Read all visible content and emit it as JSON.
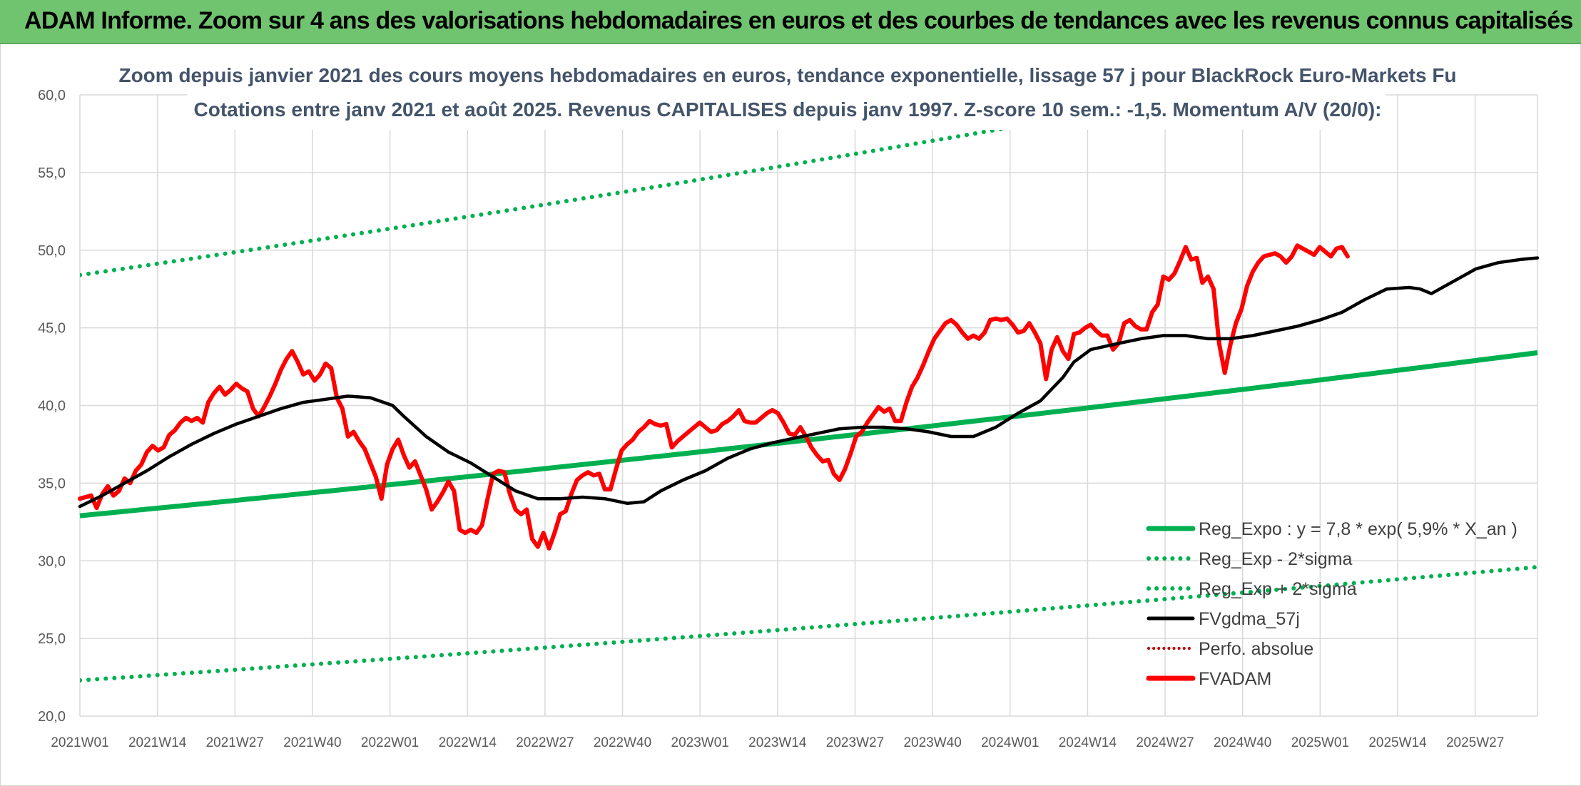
{
  "banner": "ADAM Informe. Zoom sur 4 ans des valorisations hebdomadaires en euros et des courbes de tendances avec les revenus connus capitalisés",
  "colors": {
    "banner": "#70c46f",
    "trend": "#00b050",
    "fvadam": "#ff0000",
    "fvgdma": "#000000",
    "perfo": "#c00000",
    "title": "#44546a"
  },
  "chart_data": {
    "type": "line",
    "title_line1": "Zoom depuis janvier 2021 des cours moyens hebdomadaires en euros, tendance exponentielle, lissage 57 j pour BlackRock Euro-Markets Fu",
    "title_line2": "Cotations entre janv 2021 et août 2025. Revenus CAPITALISES depuis janv 1997. Z-score 10 sem.: -1,5. Momentum A/V (20/0):",
    "ylim": [
      20,
      60
    ],
    "y_ticks": [
      "20,0",
      "25,0",
      "30,0",
      "35,0",
      "40,0",
      "45,0",
      "50,0",
      "55,0",
      "60,0"
    ],
    "x_ticks": [
      "2021W01",
      "2021W14",
      "2021W27",
      "2021W40",
      "2022W01",
      "2022W14",
      "2022W27",
      "2022W40",
      "2023W01",
      "2023W14",
      "2023W27",
      "2023W40",
      "2024W01",
      "2024W14",
      "2024W27",
      "2024W40",
      "2025W01",
      "2025W14",
      "2025W27"
    ],
    "grid": true,
    "legend_position": "bottom-right",
    "legend": [
      {
        "label": "Reg_Expo : y = 7,8 * exp( 5,9% *  X_an )",
        "style": "solid-green"
      },
      {
        "label": "Reg_Exp - 2*sigma",
        "style": "dotted-green"
      },
      {
        "label": "Reg_Exp + 2*sigma",
        "style": "dotted-green"
      },
      {
        "label": "FVgdma_57j",
        "style": "solid-black"
      },
      {
        "label": "Perfo. absolue",
        "style": "dotted-red"
      },
      {
        "label": "FVADAM",
        "style": "solid-red"
      }
    ],
    "series": [
      {
        "name": "Reg_Expo : y = 7,8 * exp( 5,9% *  X_an )",
        "key": "reg",
        "start": 32.9,
        "end": 43.4
      },
      {
        "name": "Reg_Exp - 2*sigma",
        "key": "low",
        "start": 22.3,
        "end": 29.6
      },
      {
        "name": "Reg_Exp + 2*sigma",
        "key": "high",
        "start": 48.4,
        "end": 64.1
      },
      {
        "name": "FVgdma_57j",
        "key": "gdma",
        "points": [
          [
            0,
            33.5
          ],
          [
            4,
            34.2
          ],
          [
            8,
            35.0
          ],
          [
            12,
            35.8
          ],
          [
            16,
            36.7
          ],
          [
            20,
            37.5
          ],
          [
            24,
            38.2
          ],
          [
            28,
            38.8
          ],
          [
            32,
            39.3
          ],
          [
            36,
            39.8
          ],
          [
            40,
            40.2
          ],
          [
            44,
            40.4
          ],
          [
            48,
            40.6
          ],
          [
            52,
            40.5
          ],
          [
            56,
            40.0
          ],
          [
            58,
            39.3
          ],
          [
            62,
            38.0
          ],
          [
            66,
            37.0
          ],
          [
            70,
            36.3
          ],
          [
            74,
            35.4
          ],
          [
            78,
            34.5
          ],
          [
            82,
            34.0
          ],
          [
            86,
            34.0
          ],
          [
            90,
            34.1
          ],
          [
            94,
            34.0
          ],
          [
            98,
            33.7
          ],
          [
            101,
            33.8
          ],
          [
            104,
            34.5
          ],
          [
            108,
            35.2
          ],
          [
            112,
            35.8
          ],
          [
            116,
            36.6
          ],
          [
            120,
            37.2
          ],
          [
            124,
            37.6
          ],
          [
            128,
            37.9
          ],
          [
            132,
            38.2
          ],
          [
            136,
            38.5
          ],
          [
            140,
            38.6
          ],
          [
            144,
            38.6
          ],
          [
            148,
            38.5
          ],
          [
            152,
            38.3
          ],
          [
            156,
            38.0
          ],
          [
            160,
            38.0
          ],
          [
            164,
            38.6
          ],
          [
            168,
            39.5
          ],
          [
            172,
            40.3
          ],
          [
            176,
            41.8
          ],
          [
            178,
            42.8
          ],
          [
            181,
            43.6
          ],
          [
            186,
            44.0
          ],
          [
            190,
            44.3
          ],
          [
            194,
            44.5
          ],
          [
            198,
            44.5
          ],
          [
            202,
            44.3
          ],
          [
            206,
            44.3
          ],
          [
            210,
            44.5
          ],
          [
            214,
            44.8
          ],
          [
            218,
            45.1
          ],
          [
            222,
            45.5
          ],
          [
            226,
            46.0
          ],
          [
            230,
            46.8
          ],
          [
            234,
            47.5
          ],
          [
            238,
            47.6
          ],
          [
            240,
            47.5
          ],
          [
            242,
            47.2
          ],
          [
            246,
            48.0
          ],
          [
            250,
            48.8
          ],
          [
            254,
            49.2
          ],
          [
            258,
            49.4
          ],
          [
            261,
            49.5
          ]
        ]
      },
      {
        "name": "FVADAM",
        "key": "fvadam",
        "points": [
          [
            0,
            34.0
          ],
          [
            2,
            34.2
          ],
          [
            3,
            33.4
          ],
          [
            4,
            34.3
          ],
          [
            5,
            34.8
          ],
          [
            6,
            34.2
          ],
          [
            7,
            34.5
          ],
          [
            8,
            35.3
          ],
          [
            9,
            35.0
          ],
          [
            10,
            35.8
          ],
          [
            11,
            36.2
          ],
          [
            12,
            37.0
          ],
          [
            13,
            37.4
          ],
          [
            14,
            37.1
          ],
          [
            15,
            37.3
          ],
          [
            16,
            38.1
          ],
          [
            17,
            38.4
          ],
          [
            18,
            38.9
          ],
          [
            19,
            39.2
          ],
          [
            20,
            39.0
          ],
          [
            21,
            39.2
          ],
          [
            22,
            38.9
          ],
          [
            23,
            40.2
          ],
          [
            24,
            40.8
          ],
          [
            25,
            41.2
          ],
          [
            26,
            40.7
          ],
          [
            27,
            41.0
          ],
          [
            28,
            41.4
          ],
          [
            29,
            41.1
          ],
          [
            30,
            40.9
          ],
          [
            31,
            39.8
          ],
          [
            32,
            39.3
          ],
          [
            33,
            39.9
          ],
          [
            34,
            40.6
          ],
          [
            35,
            41.4
          ],
          [
            36,
            42.3
          ],
          [
            37,
            43.0
          ],
          [
            38,
            43.5
          ],
          [
            39,
            42.8
          ],
          [
            40,
            42.0
          ],
          [
            41,
            42.2
          ],
          [
            42,
            41.6
          ],
          [
            43,
            42.0
          ],
          [
            44,
            42.7
          ],
          [
            45,
            42.4
          ],
          [
            46,
            40.5
          ],
          [
            47,
            39.8
          ],
          [
            48,
            38.0
          ],
          [
            49,
            38.3
          ],
          [
            50,
            37.7
          ],
          [
            51,
            37.2
          ],
          [
            52,
            36.3
          ],
          [
            53,
            35.4
          ],
          [
            54,
            34.0
          ],
          [
            55,
            36.2
          ],
          [
            56,
            37.2
          ],
          [
            57,
            37.8
          ],
          [
            58,
            36.8
          ],
          [
            59,
            36.0
          ],
          [
            60,
            36.4
          ],
          [
            61,
            35.5
          ],
          [
            62,
            34.6
          ],
          [
            63,
            33.3
          ],
          [
            64,
            33.8
          ],
          [
            65,
            34.4
          ],
          [
            66,
            35.1
          ],
          [
            67,
            34.5
          ],
          [
            68,
            32.0
          ],
          [
            69,
            31.8
          ],
          [
            70,
            32.0
          ],
          [
            71,
            31.8
          ],
          [
            72,
            32.3
          ],
          [
            73,
            34.0
          ],
          [
            74,
            35.6
          ],
          [
            75,
            35.8
          ],
          [
            76,
            35.7
          ],
          [
            77,
            34.3
          ],
          [
            78,
            33.3
          ],
          [
            79,
            33.0
          ],
          [
            80,
            33.3
          ],
          [
            81,
            31.4
          ],
          [
            82,
            30.9
          ],
          [
            83,
            31.8
          ],
          [
            84,
            30.8
          ],
          [
            85,
            31.8
          ],
          [
            86,
            33.0
          ],
          [
            87,
            33.2
          ],
          [
            88,
            34.3
          ],
          [
            89,
            35.2
          ],
          [
            90,
            35.5
          ],
          [
            91,
            35.7
          ],
          [
            92,
            35.5
          ],
          [
            93,
            35.6
          ],
          [
            94,
            34.6
          ],
          [
            95,
            34.6
          ],
          [
            96,
            35.9
          ],
          [
            97,
            37.1
          ],
          [
            98,
            37.5
          ],
          [
            99,
            37.8
          ],
          [
            100,
            38.3
          ],
          [
            101,
            38.6
          ],
          [
            102,
            39.0
          ],
          [
            103,
            38.8
          ],
          [
            104,
            38.7
          ],
          [
            105,
            38.8
          ],
          [
            106,
            37.3
          ],
          [
            107,
            37.7
          ],
          [
            108,
            38.0
          ],
          [
            109,
            38.3
          ],
          [
            110,
            38.6
          ],
          [
            111,
            38.9
          ],
          [
            112,
            38.6
          ],
          [
            113,
            38.3
          ],
          [
            114,
            38.4
          ],
          [
            115,
            38.8
          ],
          [
            116,
            39.0
          ],
          [
            117,
            39.3
          ],
          [
            118,
            39.7
          ],
          [
            119,
            39.0
          ],
          [
            120,
            38.9
          ],
          [
            121,
            38.9
          ],
          [
            122,
            39.2
          ],
          [
            123,
            39.5
          ],
          [
            124,
            39.7
          ],
          [
            125,
            39.5
          ],
          [
            126,
            38.9
          ],
          [
            127,
            38.2
          ],
          [
            128,
            38.1
          ],
          [
            129,
            38.6
          ],
          [
            130,
            38.0
          ],
          [
            131,
            37.3
          ],
          [
            132,
            36.8
          ],
          [
            133,
            36.4
          ],
          [
            134,
            36.5
          ],
          [
            135,
            35.6
          ],
          [
            136,
            35.2
          ],
          [
            137,
            35.9
          ],
          [
            138,
            36.9
          ],
          [
            139,
            38.0
          ],
          [
            140,
            38.3
          ],
          [
            141,
            38.9
          ],
          [
            142,
            39.4
          ],
          [
            143,
            39.9
          ],
          [
            144,
            39.6
          ],
          [
            145,
            39.8
          ],
          [
            146,
            39.0
          ],
          [
            147,
            39.0
          ],
          [
            148,
            40.2
          ],
          [
            149,
            41.2
          ],
          [
            150,
            41.8
          ],
          [
            151,
            42.6
          ],
          [
            152,
            43.5
          ],
          [
            153,
            44.3
          ],
          [
            154,
            44.8
          ],
          [
            155,
            45.3
          ],
          [
            156,
            45.5
          ],
          [
            157,
            45.2
          ],
          [
            158,
            44.7
          ],
          [
            159,
            44.3
          ],
          [
            160,
            44.5
          ],
          [
            161,
            44.3
          ],
          [
            162,
            44.7
          ],
          [
            163,
            45.5
          ],
          [
            164,
            45.6
          ],
          [
            165,
            45.5
          ],
          [
            166,
            45.6
          ],
          [
            167,
            45.2
          ],
          [
            168,
            44.7
          ],
          [
            169,
            44.8
          ],
          [
            170,
            45.3
          ],
          [
            171,
            44.7
          ],
          [
            172,
            44.0
          ],
          [
            173,
            41.7
          ],
          [
            174,
            43.6
          ],
          [
            175,
            44.4
          ],
          [
            176,
            43.5
          ],
          [
            177,
            43.0
          ],
          [
            178,
            44.6
          ],
          [
            179,
            44.7
          ],
          [
            180,
            45.0
          ],
          [
            181,
            45.2
          ],
          [
            182,
            44.8
          ],
          [
            183,
            44.5
          ],
          [
            184,
            44.5
          ],
          [
            185,
            43.6
          ],
          [
            186,
            44.0
          ],
          [
            187,
            45.3
          ],
          [
            188,
            45.5
          ],
          [
            189,
            45.1
          ],
          [
            190,
            44.9
          ],
          [
            191,
            44.9
          ],
          [
            192,
            46.0
          ],
          [
            193,
            46.5
          ],
          [
            194,
            48.3
          ],
          [
            195,
            48.1
          ],
          [
            196,
            48.5
          ],
          [
            197,
            49.3
          ],
          [
            198,
            50.2
          ],
          [
            199,
            49.4
          ],
          [
            200,
            49.5
          ],
          [
            201,
            47.9
          ],
          [
            202,
            48.3
          ],
          [
            203,
            47.5
          ],
          [
            204,
            44.0
          ],
          [
            205,
            42.1
          ],
          [
            206,
            43.9
          ],
          [
            207,
            45.3
          ],
          [
            208,
            46.2
          ],
          [
            209,
            47.7
          ],
          [
            210,
            48.6
          ],
          [
            211,
            49.2
          ],
          [
            212,
            49.6
          ],
          [
            213,
            49.7
          ],
          [
            214,
            49.8
          ],
          [
            215,
            49.6
          ],
          [
            216,
            49.2
          ],
          [
            217,
            49.6
          ],
          [
            218,
            50.3
          ],
          [
            219,
            50.1
          ],
          [
            220,
            49.9
          ],
          [
            221,
            49.7
          ],
          [
            222,
            50.2
          ],
          [
            223,
            49.9
          ],
          [
            224,
            49.6
          ],
          [
            225,
            50.1
          ],
          [
            226,
            50.2
          ],
          [
            227,
            49.6
          ]
        ]
      }
    ]
  }
}
